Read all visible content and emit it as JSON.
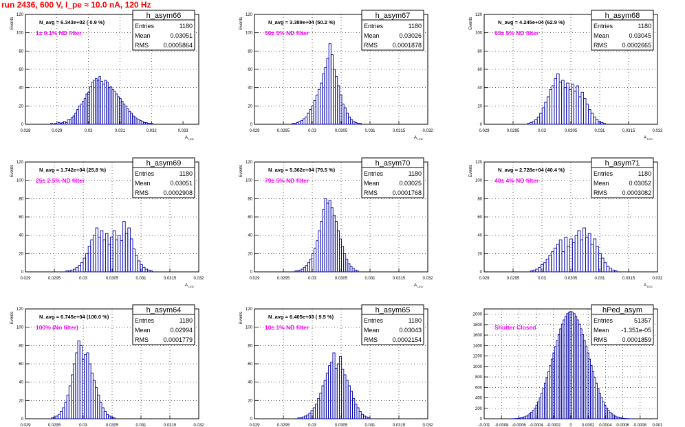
{
  "header": {
    "title": "run 2436,   600 V, I_pe ≈ 10.0 nA, 120 Hz"
  },
  "stats_labels": {
    "entries": "Entries",
    "mean": "Mean",
    "rms": "RMS"
  },
  "colors": {
    "hist": "#0000aa",
    "filter_text": "#ff00ff",
    "title_text": "#ff0000",
    "grid": "#000000"
  },
  "chart_data": [
    {
      "type": "bar",
      "name": "h_asym66",
      "ylabel": "Events",
      "xlabel": "A_LED",
      "navg": "N_avg = 6.343e+02 ( 0.9 %)",
      "filter": "1± 0.1% ND filter",
      "entries": "1180",
      "mean": "0.03051",
      "rms": "0.0005864",
      "xlim": [
        0.028,
        0.0335
      ],
      "ylim": [
        0,
        120
      ],
      "xticks": [
        0.028,
        0.029,
        0.03,
        0.031,
        0.032,
        0.033
      ],
      "xtick_labels": [
        "0.028",
        "0.029",
        "0.03",
        "0.031",
        "0.032",
        "0.033"
      ],
      "yticks": [
        0,
        20,
        40,
        60,
        80,
        100,
        120
      ],
      "ytick_labels": [
        "0",
        "20",
        "40",
        "60",
        "80",
        "100",
        "120"
      ],
      "bin_edges": [
        0.0288,
        0.0321
      ],
      "values": [
        1,
        0,
        1,
        0,
        2,
        1,
        2,
        3,
        2,
        5,
        5,
        7,
        9,
        12,
        16,
        20,
        22,
        25,
        28,
        33,
        35,
        41,
        46,
        48,
        50,
        48,
        52,
        47,
        44,
        48,
        46,
        40,
        41,
        38,
        36,
        33,
        30,
        28,
        25,
        22,
        20,
        17,
        14,
        12,
        9,
        8,
        6,
        5,
        4,
        3,
        2,
        2,
        1,
        1,
        1,
        0
      ]
    },
    {
      "type": "bar",
      "name": "h_asym67",
      "ylabel": "Events",
      "xlabel": "A_LED",
      "navg": "N_avg = 3.389e+04 (50.2 %)",
      "filter": "50± 5% ND filter",
      "entries": "1180",
      "mean": "0.03026",
      "rms": "0.0001878",
      "xlim": [
        0.029,
        0.032
      ],
      "ylim": [
        0,
        120
      ],
      "xticks": [
        0.029,
        0.0295,
        0.03,
        0.0305,
        0.031,
        0.0315,
        0.032
      ],
      "xtick_labels": [
        "0.029",
        "0.0295",
        "0.03",
        "0.0305",
        "0.031",
        "0.0315",
        "0.032"
      ],
      "yticks": [
        0,
        20,
        40,
        60,
        80,
        100,
        120
      ],
      "ytick_labels": [
        "0",
        "20",
        "40",
        "60",
        "80",
        "100",
        "120"
      ],
      "bin_edges": [
        0.02965,
        0.03085
      ],
      "values": [
        1,
        1,
        2,
        3,
        4,
        6,
        8,
        12,
        16,
        20,
        26,
        32,
        38,
        45,
        55,
        62,
        72,
        88,
        76,
        60,
        52,
        42,
        32,
        22,
        18,
        12,
        8,
        5,
        3,
        2,
        1,
        1
      ]
    },
    {
      "type": "bar",
      "name": "h_asym68",
      "ylabel": "Events",
      "xlabel": "A_LED",
      "navg": "N_avg = 4.245e+04 (62.9 %)",
      "filter": "63± 5% ND filter",
      "entries": "1180",
      "mean": "0.03045",
      "rms": "0.0002665",
      "xlim": [
        0.029,
        0.032
      ],
      "ylim": [
        0,
        120
      ],
      "xticks": [
        0.029,
        0.0295,
        0.03,
        0.0305,
        0.031,
        0.0315,
        0.032
      ],
      "xtick_labels": [
        "0.029",
        "0.0295",
        "0.03",
        "0.0305",
        "0.031",
        "0.0315",
        "0.032"
      ],
      "yticks": [
        0,
        20,
        40,
        60,
        80,
        100,
        120
      ],
      "ytick_labels": [
        "0",
        "20",
        "40",
        "60",
        "80",
        "100",
        "120"
      ],
      "bin_edges": [
        0.02975,
        0.0311
      ],
      "values": [
        1,
        2,
        3,
        5,
        8,
        12,
        18,
        24,
        30,
        38,
        42,
        50,
        55,
        46,
        48,
        40,
        45,
        38,
        44,
        36,
        42,
        30,
        35,
        28,
        22,
        16,
        12,
        8,
        5,
        3,
        2,
        1
      ]
    },
    {
      "type": "bar",
      "name": "h_asym69",
      "ylabel": "Events",
      "xlabel": "A_LED",
      "navg": "N_avg = 1.742e+04 (25.8 %)",
      "filter": "25± 2.5% ND filter",
      "entries": "1180",
      "mean": "0.03051",
      "rms": "0.0002908",
      "xlim": [
        0.029,
        0.032
      ],
      "ylim": [
        0,
        120
      ],
      "xticks": [
        0.029,
        0.0295,
        0.03,
        0.0305,
        0.031,
        0.0315,
        0.032
      ],
      "xtick_labels": [
        "0.029",
        "0.0295",
        "0.03",
        "0.0305",
        "0.031",
        "0.0315",
        "0.032"
      ],
      "yticks": [
        0,
        20,
        40,
        60,
        80,
        100,
        120
      ],
      "ytick_labels": [
        "0",
        "20",
        "40",
        "60",
        "80",
        "100",
        "120"
      ],
      "bin_edges": [
        0.0297,
        0.0312
      ],
      "values": [
        1,
        1,
        2,
        3,
        5,
        7,
        10,
        15,
        20,
        28,
        35,
        40,
        48,
        38,
        45,
        35,
        42,
        30,
        38,
        45,
        35,
        40,
        34,
        55,
        42,
        48,
        36,
        25,
        18,
        12,
        8,
        5,
        3,
        2,
        1
      ]
    },
    {
      "type": "bar",
      "name": "h_asym70",
      "ylabel": "Events",
      "xlabel": "A_LED",
      "navg": "N_avg = 5.362e+04 (79.5 %)",
      "filter": "79± 5% ND filter",
      "entries": "1180",
      "mean": "0.03025",
      "rms": "0.0001768",
      "xlim": [
        0.029,
        0.032
      ],
      "ylim": [
        0,
        120
      ],
      "xticks": [
        0.029,
        0.0295,
        0.03,
        0.0305,
        0.031,
        0.0315,
        0.032
      ],
      "xtick_labels": [
        "0.029",
        "0.0295",
        "0.03",
        "0.0305",
        "0.031",
        "0.0315",
        "0.032"
      ],
      "yticks": [
        0,
        20,
        40,
        60,
        80,
        100,
        120
      ],
      "ytick_labels": [
        "0",
        "20",
        "40",
        "60",
        "80",
        "100",
        "120"
      ],
      "bin_edges": [
        0.0297,
        0.0308
      ],
      "values": [
        1,
        1,
        2,
        3,
        5,
        7,
        10,
        14,
        20,
        26,
        34,
        45,
        55,
        68,
        80,
        75,
        78,
        70,
        62,
        55,
        45,
        36,
        28,
        20,
        14,
        9,
        6,
        4,
        2,
        1
      ]
    },
    {
      "type": "bar",
      "name": "h_asym71",
      "ylabel": "Events",
      "xlabel": "A_LED",
      "navg": "N_avg = 2.728e+04 (40.4 %)",
      "filter": "40± 4% ND filter",
      "entries": "1180",
      "mean": "0.03052",
      "rms": "0.0003082",
      "xlim": [
        0.029,
        0.032
      ],
      "ylim": [
        0,
        120
      ],
      "xticks": [
        0.029,
        0.0295,
        0.03,
        0.0305,
        0.031,
        0.0315,
        0.032
      ],
      "xtick_labels": [
        "0.029",
        "0.0295",
        "0.03",
        "0.0305",
        "0.031",
        "0.0315",
        "0.032"
      ],
      "yticks": [
        0,
        20,
        40,
        60,
        80,
        100,
        120
      ],
      "ytick_labels": [
        "0",
        "20",
        "40",
        "60",
        "80",
        "100",
        "120"
      ],
      "bin_edges": [
        0.0298,
        0.0313
      ],
      "values": [
        1,
        2,
        3,
        5,
        8,
        10,
        14,
        18,
        22,
        26,
        30,
        35,
        22,
        38,
        28,
        36,
        32,
        40,
        45,
        35,
        48,
        38,
        42,
        30,
        36,
        28,
        20,
        15,
        10,
        6,
        4,
        2,
        1
      ]
    },
    {
      "type": "bar",
      "name": "h_asym64",
      "ylabel": "Events",
      "xlabel": "A_LED",
      "navg": "N_avg = 6.745e+04 (100.0 %)",
      "filter": "100% (No filter)",
      "entries": "1180",
      "mean": "0.02994",
      "rms": "0.0001779",
      "xlim": [
        0.029,
        0.032
      ],
      "ylim": [
        0,
        120
      ],
      "xticks": [
        0.029,
        0.0295,
        0.03,
        0.0305,
        0.031,
        0.0315,
        0.032
      ],
      "xtick_labels": [
        "0.029",
        "0.0295",
        "0.03",
        "0.0305",
        "0.031",
        "0.0315",
        "0.032"
      ],
      "yticks": [
        0,
        20,
        40,
        60,
        80,
        100,
        120
      ],
      "ytick_labels": [
        "0",
        "20",
        "40",
        "60",
        "80",
        "100",
        "120"
      ],
      "bin_edges": [
        0.02945,
        0.03055
      ],
      "values": [
        1,
        2,
        3,
        5,
        8,
        12,
        18,
        26,
        36,
        48,
        60,
        72,
        85,
        80,
        65,
        70,
        72,
        60,
        50,
        42,
        34,
        26,
        18,
        12,
        8,
        5,
        3,
        2,
        1
      ]
    },
    {
      "type": "bar",
      "name": "h_asym65",
      "ylabel": "Events",
      "xlabel": "A_LED",
      "navg": "N_avg = 6.405e+03 ( 9.5 %)",
      "filter": "10± 1% ND filter",
      "entries": "1180",
      "mean": "0.03043",
      "rms": "0.0002154",
      "xlim": [
        0.029,
        0.032
      ],
      "ylim": [
        0,
        120
      ],
      "xticks": [
        0.029,
        0.0295,
        0.03,
        0.0305,
        0.031,
        0.0315,
        0.032
      ],
      "xtick_labels": [
        "0.029",
        "0.0295",
        "0.03",
        "0.0305",
        "0.031",
        "0.0315",
        "0.032"
      ],
      "yticks": [
        0,
        20,
        40,
        60,
        80,
        100,
        120
      ],
      "ytick_labels": [
        "0",
        "20",
        "40",
        "60",
        "80",
        "100",
        "120"
      ],
      "bin_edges": [
        0.02975,
        0.031
      ],
      "values": [
        1,
        1,
        2,
        3,
        4,
        6,
        9,
        12,
        16,
        22,
        28,
        36,
        42,
        50,
        58,
        62,
        72,
        55,
        60,
        68,
        54,
        48,
        42,
        36,
        30,
        22,
        16,
        12,
        8,
        5,
        3,
        2,
        1
      ]
    },
    {
      "type": "bar",
      "name": "hPed_asym",
      "ylabel": "",
      "xlabel": "",
      "navg": "",
      "filter": "Shutter Closed",
      "entries": "51357",
      "mean": "-1.351e-05",
      "rms": "0.0001859",
      "xlim": [
        -0.001,
        0.001
      ],
      "ylim": [
        0,
        2100
      ],
      "xticks": [
        -0.001,
        -0.0008,
        -0.0006,
        -0.0004,
        -0.0002,
        0,
        0.0002,
        0.0004,
        0.0006,
        0.0008,
        0.001
      ],
      "xtick_labels": [
        "-0.001",
        "-0.0008",
        "-0.0006",
        "-0.0004",
        "-0.0002",
        "0",
        "0.0002",
        "0.0004",
        "0.0006",
        "0.0008",
        "0.001"
      ],
      "yticks": [
        0,
        200,
        400,
        600,
        800,
        1000,
        1200,
        1400,
        1600,
        1800,
        2000
      ],
      "ytick_labels": [
        "0",
        "200",
        "400",
        "600",
        "800",
        "1000",
        "1200",
        "1400",
        "1600",
        "1800",
        "2000"
      ],
      "bin_edges": [
        -0.0007,
        0.0007
      ],
      "values": [
        1,
        2,
        3,
        5,
        8,
        12,
        18,
        26,
        38,
        52,
        70,
        95,
        125,
        160,
        205,
        260,
        325,
        400,
        485,
        580,
        680,
        790,
        900,
        1020,
        1140,
        1260,
        1380,
        1500,
        1610,
        1720,
        1810,
        1890,
        1960,
        2010,
        2040,
        2050,
        2040,
        2010,
        1960,
        1890,
        1810,
        1720,
        1610,
        1500,
        1380,
        1260,
        1140,
        1020,
        900,
        790,
        680,
        580,
        485,
        400,
        325,
        260,
        205,
        160,
        125,
        95,
        70,
        52,
        38,
        26,
        18,
        12,
        8,
        5,
        3,
        2,
        1
      ]
    }
  ]
}
